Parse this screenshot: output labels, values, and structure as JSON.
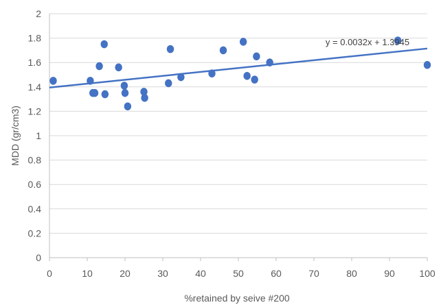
{
  "chart_data": {
    "type": "scatter",
    "title": "",
    "xlabel": "%retained by seive #200",
    "ylabel": "MDD (gr/cm3)",
    "xlim": [
      0,
      100
    ],
    "ylim": [
      0,
      2
    ],
    "x_ticks": [
      "0",
      "10",
      "20",
      "30",
      "40",
      "50",
      "60",
      "70",
      "80",
      "90",
      "100"
    ],
    "y_ticks": [
      "0",
      "0.2",
      "0.4",
      "0.6",
      "0.8",
      "1",
      "1.2",
      "1.4",
      "1.6",
      "1.8",
      "2"
    ],
    "grid": "horizontal",
    "colors": {
      "points": "#4472C4",
      "trendline": "#4472C4",
      "grid": "#D9D9D9",
      "axis": "#BFBFBF"
    },
    "series": [
      {
        "points": [
          {
            "x": 1,
            "y": 1.45
          },
          {
            "x": 10.8,
            "y": 1.45
          },
          {
            "x": 11.5,
            "y": 1.35
          },
          {
            "x": 12,
            "y": 1.35
          },
          {
            "x": 13.2,
            "y": 1.57
          },
          {
            "x": 14.5,
            "y": 1.75
          },
          {
            "x": 14.7,
            "y": 1.34
          },
          {
            "x": 18.3,
            "y": 1.56
          },
          {
            "x": 19.8,
            "y": 1.41
          },
          {
            "x": 20,
            "y": 1.35
          },
          {
            "x": 20.7,
            "y": 1.24
          },
          {
            "x": 25,
            "y": 1.36
          },
          {
            "x": 25.2,
            "y": 1.31
          },
          {
            "x": 31.5,
            "y": 1.43
          },
          {
            "x": 32,
            "y": 1.71
          },
          {
            "x": 34.8,
            "y": 1.48
          },
          {
            "x": 43,
            "y": 1.51
          },
          {
            "x": 46,
            "y": 1.7
          },
          {
            "x": 51.3,
            "y": 1.77
          },
          {
            "x": 52.3,
            "y": 1.49
          },
          {
            "x": 54.3,
            "y": 1.46
          },
          {
            "x": 54.8,
            "y": 1.65
          },
          {
            "x": 58.3,
            "y": 1.6
          },
          {
            "x": 92.2,
            "y": 1.78
          },
          {
            "x": 100,
            "y": 1.58
          }
        ]
      }
    ],
    "trendline": {
      "type": "linear",
      "slope": 0.0032,
      "intercept": 1.3945,
      "equation_label": "y = 0.0032x + 1.3945"
    }
  }
}
